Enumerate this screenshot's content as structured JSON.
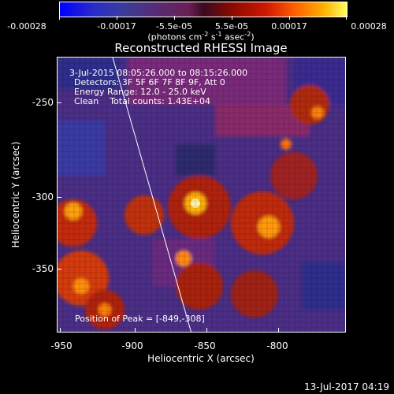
{
  "colorbar": {
    "ticks": [
      "-0.00028",
      "-0.00017",
      "-5.5e-05",
      "5.5e-05",
      "0.00017",
      "0.00028"
    ],
    "unit_pre": "(photons cm",
    "unit_sup1": "-2",
    "unit_mid": " s",
    "unit_sup2": "-1",
    "unit_post": " asec",
    "unit_sup3": "-2",
    "unit_end": ")"
  },
  "title": "Reconstructed RHESSI Image",
  "annotations": {
    "line1": "3-Jul-2015 08:05:26.000 to 08:15:26.000",
    "line2": "Detectors: 3F 5F 6F 7F 8F 9F, Att 0",
    "line3": "Energy Range: 12.0 - 25.0 keV",
    "line4": "Clean    Total counts: 1.43E+04",
    "peak": "Position of Peak = [-849,-308]"
  },
  "axes": {
    "xlabel": "Heliocentric X (arcsec)",
    "ylabel": "Heliocentric Y (arcsec)",
    "xticks": [
      "-950",
      "-900",
      "-850",
      "-800"
    ],
    "yticks": [
      "-250",
      "-300",
      "-350"
    ]
  },
  "footer": "13-Jul-2017 04:19"
}
